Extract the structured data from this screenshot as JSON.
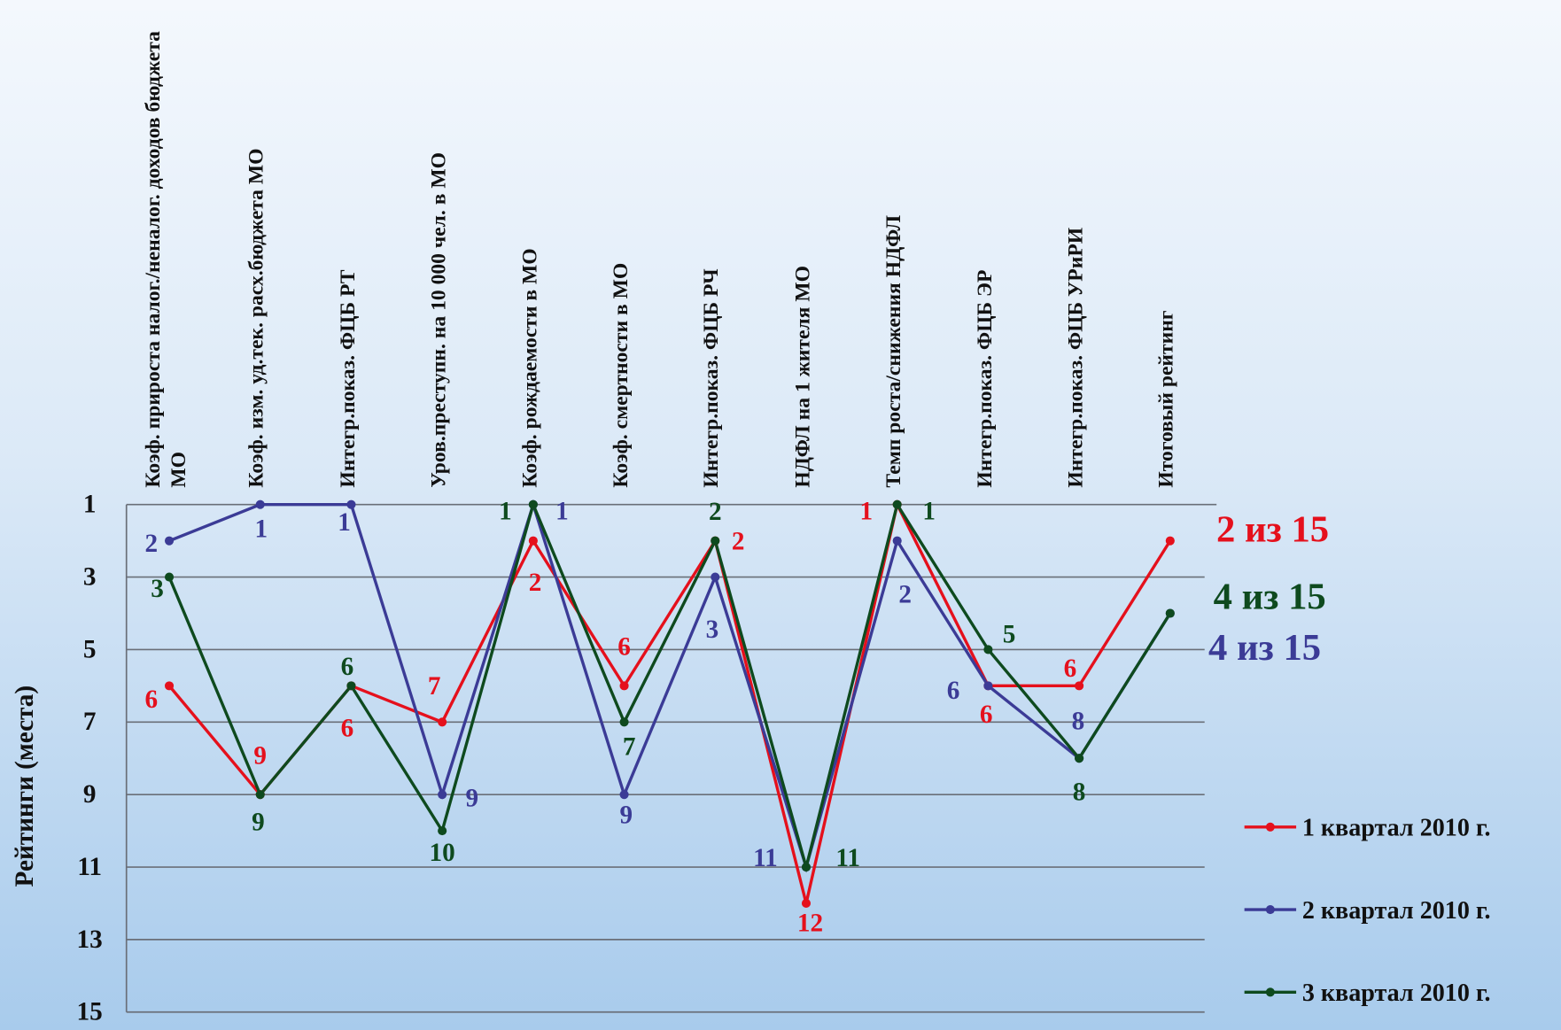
{
  "chart_data": {
    "type": "line",
    "y_title": "Рейтинги (места)",
    "categories": [
      "Коэф. прироста налог./неналог. доходов бюджета МО",
      "Коэф. изм. уд.тек. расх.бюджета  МО",
      "Интегр.показ. ФЦБ РТ",
      "Уров.преступн. на 10 000 чел. в МО",
      "Коэф. рождаемости в МО",
      "Коэф. смертности в МО",
      "Интегр.показ. ФЦБ РЧ",
      "НДФЛ на 1 жителя МО",
      "Темп роста/снижения НДФЛ",
      "Интегр.показ. ФЦБ ЭР",
      "Интегр.показ. ФЦБ УРиРИ",
      "Итоговый рейтинг"
    ],
    "series": [
      {
        "name": "1 квартал 2010 г.",
        "color": "#e5101c",
        "values": [
          6,
          9,
          6,
          7,
          2,
          6,
          2,
          12,
          1,
          6,
          6,
          2
        ],
        "value_labels": [
          "6",
          "9",
          "6",
          "7",
          "2",
          "6",
          "2",
          "12",
          "1",
          "6",
          "6",
          "2 из 15"
        ]
      },
      {
        "name": "2 квартал 2010 г.",
        "color": "#3b3b96",
        "values": [
          2,
          1,
          1,
          9,
          1,
          9,
          3,
          11,
          2,
          6,
          8,
          4
        ],
        "value_labels": [
          "2",
          "1",
          "1",
          "9",
          "1",
          "9",
          "3",
          "11",
          "2",
          "6",
          "8",
          "4 из 15"
        ]
      },
      {
        "name": "3 квартал 2010 г.",
        "color": "#0e4a1e",
        "values": [
          3,
          9,
          6,
          10,
          1,
          7,
          2,
          11,
          1,
          5,
          8,
          4
        ],
        "value_labels": [
          "3",
          "9",
          "6",
          "10",
          "1",
          "7",
          "2",
          "11",
          "1",
          "5",
          "8",
          "4 из 15"
        ]
      }
    ],
    "ylim": [
      1,
      15
    ],
    "y_inverted": true,
    "yticks": [
      1,
      3,
      5,
      7,
      9,
      11,
      13,
      15
    ],
    "grid": true,
    "legend": "right"
  }
}
